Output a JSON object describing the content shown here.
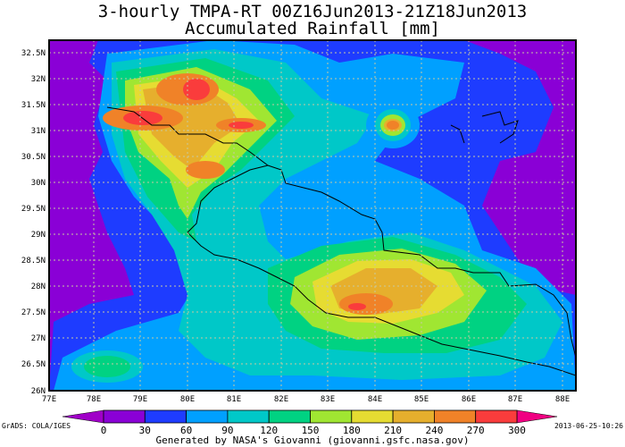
{
  "header": {
    "title_line1": "3-hourly TMPA-RT 00Z16Jun2013-21Z18Jun2013",
    "title_line2": "Accumulated Rainfall [mm]"
  },
  "map": {
    "lat_ticks": [
      "32.5N",
      "32N",
      "31.5N",
      "31N",
      "30.5N",
      "30N",
      "29.5N",
      "29N",
      "28.5N",
      "28N",
      "27.5N",
      "27N",
      "26.5N",
      "26N"
    ],
    "lon_ticks": [
      "77E",
      "78E",
      "79E",
      "80E",
      "81E",
      "82E",
      "83E",
      "84E",
      "85E",
      "86E",
      "87E",
      "88E"
    ],
    "grid": true,
    "boundaries": "country borders"
  },
  "colorbar": {
    "labels": [
      "0",
      "30",
      "60",
      "90",
      "120",
      "150",
      "180",
      "210",
      "240",
      "270",
      "300"
    ],
    "colors": [
      "#8a00d6",
      "#1e3cff",
      "#00a0ff",
      "#00c8c8",
      "#00d282",
      "#a0e632",
      "#e6dc32",
      "#e6af2d",
      "#f08228",
      "#fa3c3c"
    ],
    "below_color": "#a000c8",
    "above_color": "#f00082"
  },
  "footer": {
    "left": "GrADS: COLA/IGES",
    "center": "Generated by NASA's Giovanni (giovanni.gsfc.nasa.gov)",
    "right": "2013-06-25-10:26"
  }
}
